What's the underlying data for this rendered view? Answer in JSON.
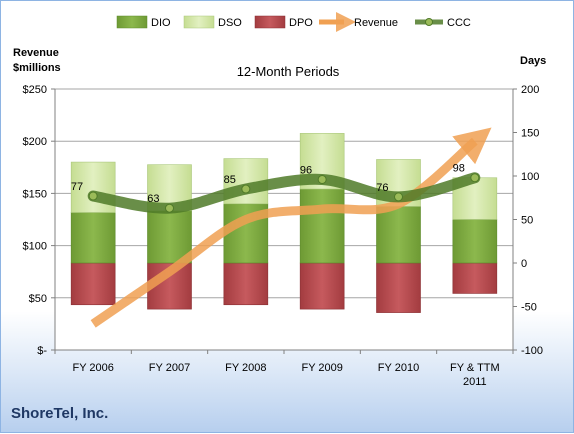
{
  "company": "ShoreTel, Inc.",
  "chart_data": {
    "type": "bar",
    "title": "12-Month Periods",
    "left_axis_title": [
      "Revenue",
      "$millions"
    ],
    "right_axis_title": "Days",
    "categories": [
      [
        "FY 2006"
      ],
      [
        "FY 2007"
      ],
      [
        "FY 2008"
      ],
      [
        "FY 2009"
      ],
      [
        "FY 2010"
      ],
      [
        "FY & TTM",
        "2011"
      ]
    ],
    "left_axis": {
      "min": 0,
      "max": 250,
      "step": 50,
      "tick_labels": [
        "$-",
        "$50",
        "$100",
        "$150",
        "$200",
        "$250"
      ]
    },
    "right_axis": {
      "min": -100,
      "max": 200,
      "step": 50,
      "tick_labels": [
        "-100",
        "-50",
        "0",
        "50",
        "100",
        "150",
        "200"
      ]
    },
    "grid": true,
    "legend_position": "top",
    "series": [
      {
        "name": "DIO",
        "type": "stacked-bar",
        "axis": "right",
        "values": [
          58,
          60,
          68,
          85,
          65,
          50
        ],
        "color": "#77a33c"
      },
      {
        "name": "DSO",
        "type": "stacked-bar",
        "axis": "right",
        "values": [
          58,
          53,
          52,
          64,
          54,
          48
        ],
        "color": "#d4e7a8"
      },
      {
        "name": "DPO",
        "type": "negative-bar",
        "axis": "right",
        "values": [
          -48,
          -53,
          -48,
          -53,
          -57,
          -35
        ],
        "color": "#b8474b"
      },
      {
        "name": "Revenue",
        "type": "line",
        "axis": "left",
        "values": [
          25,
          75,
          125,
          135,
          140,
          200
        ],
        "color": "#f0a052"
      },
      {
        "name": "CCC",
        "type": "line",
        "axis": "right",
        "values": [
          77,
          63,
          85,
          96,
          76,
          98
        ],
        "labels": [
          "77",
          "63",
          "85",
          "96",
          "76",
          "98"
        ],
        "color": "#4f7a28"
      }
    ]
  }
}
